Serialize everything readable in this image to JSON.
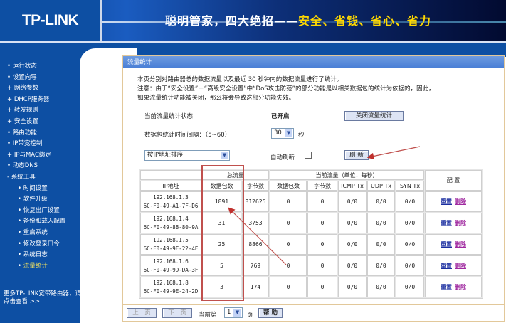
{
  "header": {
    "logo": "TP-LINK",
    "slogan_white": "聪明管家，四大绝招——",
    "slogan_yellow": "安全、省钱、省心、省力"
  },
  "sidebar": {
    "items": [
      {
        "label": "运行状态",
        "marker": "•"
      },
      {
        "label": "设置向导",
        "marker": "•"
      },
      {
        "label": "网络参数",
        "marker": "+"
      },
      {
        "label": "DHCP服务器",
        "marker": "+"
      },
      {
        "label": "转发规则",
        "marker": "+"
      },
      {
        "label": "安全设置",
        "marker": "+"
      },
      {
        "label": "路由功能",
        "marker": "•"
      },
      {
        "label": "IP带宽控制",
        "marker": "•"
      },
      {
        "label": "IP与MAC绑定",
        "marker": "+"
      },
      {
        "label": "动态DNS",
        "marker": "•"
      },
      {
        "label": "系统工具",
        "marker": "-"
      }
    ],
    "subitems": [
      {
        "label": "时间设置"
      },
      {
        "label": "软件升级"
      },
      {
        "label": "恢复出厂设置"
      },
      {
        "label": "备份和载入配置"
      },
      {
        "label": "重启系统"
      },
      {
        "label": "修改登录口令"
      },
      {
        "label": "系统日志"
      },
      {
        "label": "流量统计",
        "active": true
      }
    ],
    "more_link": "更多TP-LINK宽带路由器，请点击查看 >>"
  },
  "panel": {
    "title": "流量统计",
    "desc1": "本页分别对路由器总的数据流量以及最近 30 秒钟内的数据流量进行了统计。",
    "desc2": "注意：由于“安全设置”－“高级安全设置”中“DoS攻击防范”的部分功能是以相关数据包的统计为依据的，因此，",
    "desc3": "如果流量统计功能被关闭，那么将会导致这部分功能失效。",
    "status_label": "当前流量统计状态",
    "status_value": "已开启",
    "toggle_button": "关闭流量统计",
    "interval_label": "数据包统计时间间隔：（5~60）",
    "interval_value": "30",
    "interval_unit": "秒",
    "sort_value": "按IP地址排序",
    "auto_refresh_label": "自动刷新",
    "auto_refresh_checked": false,
    "refresh_button": "刷 新"
  },
  "table": {
    "group_total": "总流量",
    "group_current": "当前流量（单位：每秒）",
    "col_config": "配 置",
    "columns": [
      "IP地址",
      "数据包数",
      "字节数",
      "数据包数",
      "字节数",
      "ICMP Tx",
      "UDP Tx",
      "SYN Tx"
    ],
    "reset_label": "重置",
    "delete_label": "删除",
    "rows": [
      {
        "ip": "192.168.1.3",
        "mac": "6C-F0-49-A1-7F-D6",
        "packets": "1891",
        "bytes": "812625",
        "cur_packets": "0",
        "cur_bytes": "0",
        "icmp": "0/0",
        "udp": "0/0",
        "syn": "0/0"
      },
      {
        "ip": "192.168.1.4",
        "mac": "6C-F0-49-88-80-9A",
        "packets": "31",
        "bytes": "3753",
        "cur_packets": "0",
        "cur_bytes": "0",
        "icmp": "0/0",
        "udp": "0/0",
        "syn": "0/0"
      },
      {
        "ip": "192.168.1.5",
        "mac": "6C-F0-49-9E-22-4E",
        "packets": "25",
        "bytes": "8866",
        "cur_packets": "0",
        "cur_bytes": "0",
        "icmp": "0/0",
        "udp": "0/0",
        "syn": "0/0"
      },
      {
        "ip": "192.168.1.6",
        "mac": "6C-F0-49-9D-DA-3F",
        "packets": "5",
        "bytes": "769",
        "cur_packets": "0",
        "cur_bytes": "0",
        "icmp": "0/0",
        "udp": "0/0",
        "syn": "0/0"
      },
      {
        "ip": "192.168.1.8",
        "mac": "6C-F0-49-9E-24-2D",
        "packets": "3",
        "bytes": "174",
        "cur_packets": "0",
        "cur_bytes": "0",
        "icmp": "0/0",
        "udp": "0/0",
        "syn": "0/0"
      }
    ]
  },
  "footer": {
    "prev": "上一页",
    "next": "下一页",
    "current_label": "当前第",
    "page": "1",
    "page_unit": "页",
    "help": "帮 助"
  },
  "colors": {
    "sidebar": "#0d4fa3",
    "title_bar": "#4a7fd6",
    "annotation": "#c0504d"
  }
}
